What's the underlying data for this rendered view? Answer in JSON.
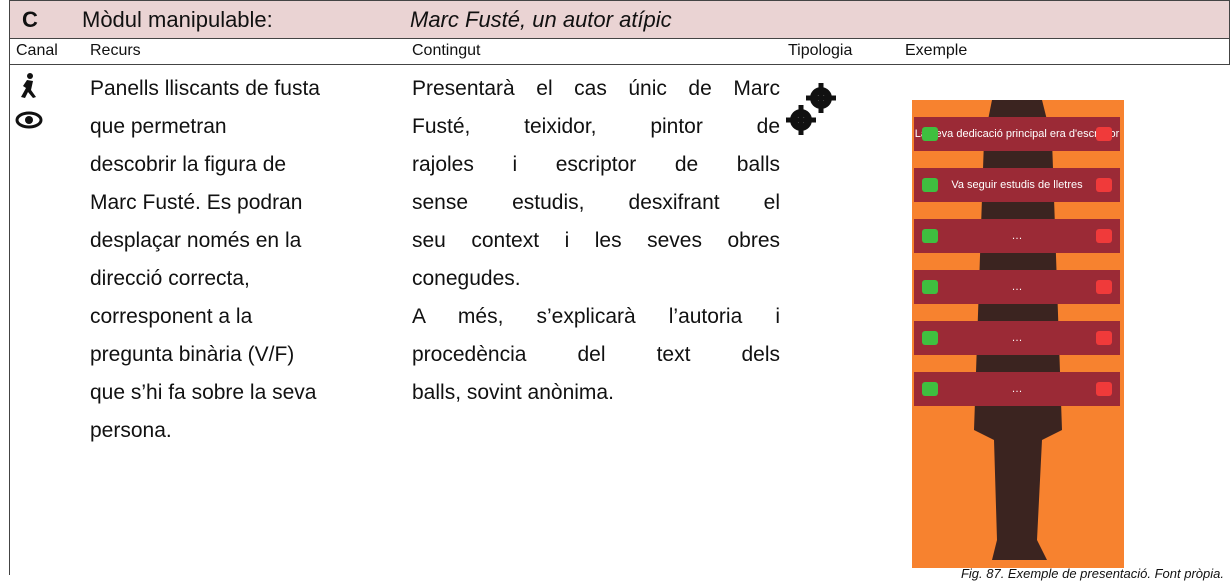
{
  "header": {
    "label": "C",
    "module": "Mòdul manipulable:",
    "title": "Marc Fusté, un autor atípic"
  },
  "columns": [
    "Canal",
    "Recurs",
    "Contingut",
    "Tipologia",
    "Exemple"
  ],
  "recurs": [
    "Panells lliscants de fusta",
    "que permetran",
    "descobrir la figura de",
    "Marc Fusté. Es podran",
    "desplaçar només en la",
    "direcció correcta,",
    "corresponent a la",
    "pregunta binària (V/F)",
    "que s’hi fa sobre la seva",
    "persona."
  ],
  "contingut": [
    [
      "Presentarà el cas únic de Marc",
      "Fusté, teixidor, pintor de",
      "rajoles i escriptor de balls",
      "sense estudis, desxifrant el",
      "seu context i les seves obres",
      "conegudes."
    ],
    [
      "A més, s’explicarà l’autoria i",
      "procedència del text dels",
      "balls, sovint anònima."
    ]
  ],
  "example": {
    "panels": [
      "La seva dedicació principal era d'escriptor",
      "Va seguir estudis de lletres",
      "…",
      "…",
      "…",
      "…"
    ],
    "caption": "Fig. 87. Exemple de presentació. Font pròpia."
  }
}
